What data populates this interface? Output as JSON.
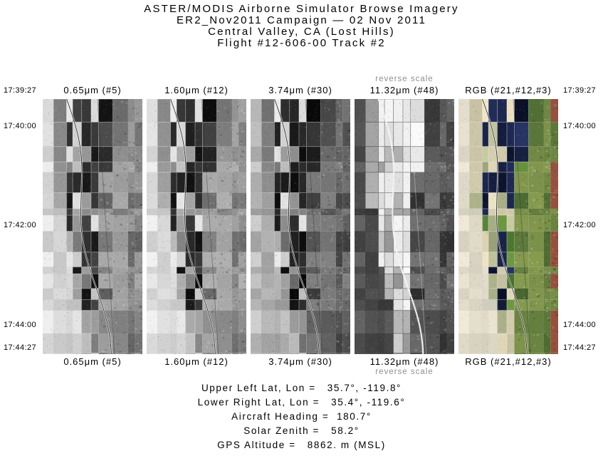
{
  "title": {
    "lines": [
      "ASTER/MODIS Airborne Simulator Browse Imagery",
      "ER2_Nov2011 Campaign — 02 Nov 2011",
      "Central Valley, CA (Lost Hills)",
      "Flight #12-606-00 Track #2"
    ]
  },
  "columns": [
    {
      "label": "0.65μm (#5)",
      "band": "b1"
    },
    {
      "label": "1.60μm (#12)",
      "band": "b2"
    },
    {
      "label": "3.74μm (#30)",
      "band": "b3"
    },
    {
      "label": "11.32μm (#48)",
      "band": "b4",
      "note": "reverse scale"
    },
    {
      "label": "RGB (#21,#12,#3)",
      "band": "rgb"
    }
  ],
  "time_ticks": [
    "17:39:27",
    "17:40:00",
    "17:42:00",
    "17:44:00",
    "17:44:27"
  ],
  "footer": {
    "lines": [
      "Upper Left Lat, Lon =   35.7°, -119.8°",
      "Lower Right Lat, Lon =   35.4°, -119.6°",
      "Aircraft Heading =  180.7°",
      "Solar Zenith =   58.2°",
      "GPS Altitude =   8862. m (MSL)"
    ]
  },
  "colors": {
    "background": "#ffffff",
    "text": "#000000",
    "note_gray": "#8f8f8f"
  }
}
